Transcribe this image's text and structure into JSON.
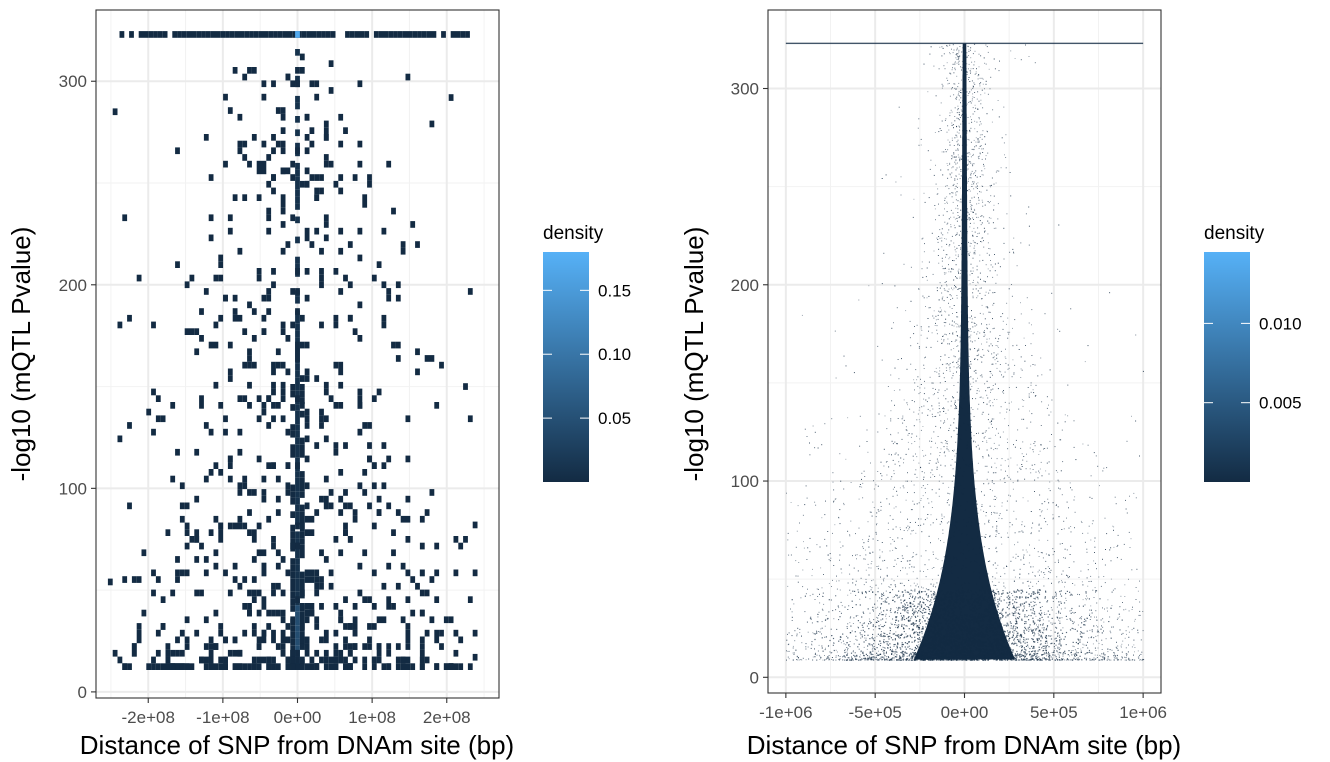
{
  "chart_data": [
    {
      "type": "heatmap",
      "subtype": "2d-bin-density",
      "xlabel": "Distance of SNP from DNAm site (bp)",
      "ylabel": "-log10 (mQTL Pvalue)",
      "xlim": [
        -270000000,
        270000000
      ],
      "ylim": [
        -3,
        335
      ],
      "x_ticks": [
        -200000000,
        -100000000,
        0,
        100000000,
        200000000
      ],
      "x_tick_labels": [
        "-2e+08",
        "-1e+08",
        "0e+00",
        "1e+08",
        "2e+08"
      ],
      "y_ticks": [
        0,
        100,
        200,
        300
      ],
      "y_tick_labels": [
        "0",
        "100",
        "200",
        "300"
      ],
      "legend": {
        "title": "density",
        "position": "right",
        "range": [
          0,
          0.18
        ],
        "breaks": [
          0.05,
          0.1,
          0.15
        ],
        "labels": [
          "0.05",
          "0.10",
          "0.15"
        ],
        "color_low": "#132b43",
        "color_high": "#56b1f7"
      },
      "grid": true,
      "cap_row_y": 323,
      "x_range_data": [
        -245000000,
        240000000
      ],
      "y_range_data": [
        13,
        323
      ]
    },
    {
      "type": "heatmap",
      "subtype": "2d-bin-density",
      "xlabel": "Distance of SNP from DNAm site (bp)",
      "ylabel": "-log10 (mQTL Pvalue)",
      "xlim": [
        -1100000,
        1100000
      ],
      "ylim": [
        -8,
        340
      ],
      "x_ticks": [
        -1000000,
        -500000,
        0,
        500000,
        1000000
      ],
      "x_tick_labels": [
        "-1e+06",
        "-5e+05",
        "0e+00",
        "5e+05",
        "1e+06"
      ],
      "y_ticks": [
        0,
        100,
        200,
        300
      ],
      "y_tick_labels": [
        "0",
        "100",
        "200",
        "300"
      ],
      "legend": {
        "title": "density",
        "position": "right",
        "range": [
          0,
          0.0145
        ],
        "breaks": [
          0.005,
          0.01
        ],
        "labels": [
          "0.005",
          "0.010"
        ],
        "color_low": "#132b43",
        "color_high": "#56b1f7"
      },
      "grid": true,
      "cap_row_y": 323,
      "x_range_data": [
        -1000000,
        1000000
      ],
      "y_range_data": [
        9,
        323
      ]
    }
  ]
}
